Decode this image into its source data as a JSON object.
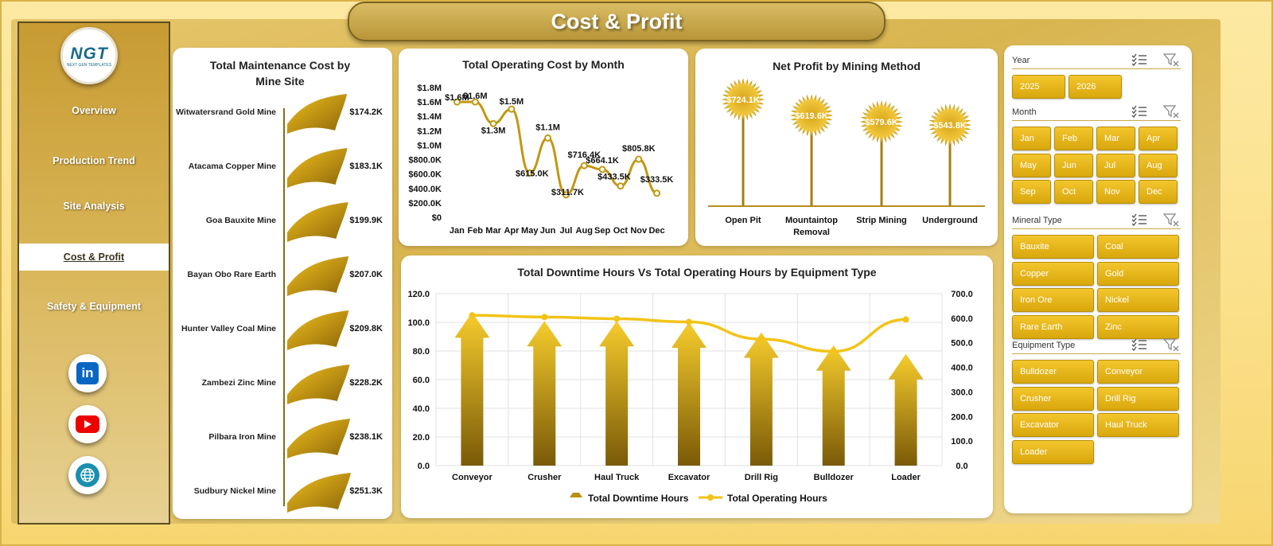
{
  "title": "Cost & Profit",
  "logo": {
    "text": "NGT",
    "subtext": "NEXT GEN TEMPLATES"
  },
  "nav": {
    "items": [
      {
        "label": "Overview",
        "active": false
      },
      {
        "label": "Production Trend",
        "active": false
      },
      {
        "label": "Site Analysis",
        "active": false
      },
      {
        "label": "Cost & Profit",
        "active": true
      },
      {
        "label": "Safety & Equipment",
        "active": false
      }
    ]
  },
  "social": {
    "linkedin": "in"
  },
  "icons": {
    "linkedin": "linkedin-icon",
    "youtube": "youtube-icon",
    "web": "globe-icon",
    "multiselect": "multi-select-icon",
    "clear_filter": "clear-filter-icon"
  },
  "colors": {
    "gold": "#b8900d",
    "gold_light": "#f2c53a",
    "line": "#f0c419",
    "accent_dark": "#7a5a08"
  },
  "charts": {
    "maintenance": {
      "title": "Total Maintenance Cost by Mine Site",
      "chart_data": {
        "type": "bar",
        "orientation": "horizontal",
        "categories": [
          "Witwatersrand Gold Mine",
          "Atacama Copper Mine",
          "Goa Bauxite Mine",
          "Bayan Obo Rare Earth",
          "Hunter Valley Coal Mine",
          "Zambezi Zinc Mine",
          "Pilbara Iron Mine",
          "Sudbury Nickel Mine"
        ],
        "values": [
          174200,
          183100,
          199900,
          207000,
          209800,
          228200,
          238100,
          251300
        ],
        "labels": [
          "$174.2K",
          "$183.1K",
          "$199.9K",
          "$207.0K",
          "$209.8K",
          "$228.2K",
          "$238.1K",
          "$251.3K"
        ]
      }
    },
    "operating": {
      "title": "Total Operating Cost by Month",
      "chart_data": {
        "type": "line",
        "categories": [
          "Jan",
          "Feb",
          "Mar",
          "Apr",
          "May",
          "Jun",
          "Jul",
          "Aug",
          "Sep",
          "Oct",
          "Nov",
          "Dec"
        ],
        "values": [
          1600000,
          1600000,
          1300000,
          1500000,
          615000,
          1100000,
          311700,
          716400,
          664100,
          433500,
          805800,
          333500
        ],
        "labels": [
          "$1.6M",
          "$1.6M",
          "$1.3M",
          "$1.5M",
          "$615.0K",
          "$1.1M",
          "$311.7K",
          "$716.4K",
          "$664.1K",
          "$433.5K",
          "$805.8K",
          "$333.5K"
        ],
        "yticks": [
          "$0",
          "$200.0K",
          "$400.0K",
          "$600.0K",
          "$800.0K",
          "$1.0M",
          "$1.2M",
          "$1.4M",
          "$1.6M",
          "$1.8M"
        ],
        "ylim": [
          0,
          1800000
        ]
      }
    },
    "netprofit": {
      "title": "Net Profit by Mining Method",
      "chart_data": {
        "type": "bar",
        "style": "lollipop-burst",
        "categories": [
          "Open Pit",
          "Mountaintop Removal",
          "Strip Mining",
          "Underground"
        ],
        "category_lines": [
          [
            "Open Pit"
          ],
          [
            "Mountaintop",
            "Removal"
          ],
          [
            "Strip Mining"
          ],
          [
            "Underground"
          ]
        ],
        "values": [
          724100,
          619600,
          579600,
          543800
        ],
        "labels": [
          "$724.1K",
          "$619.6K",
          "$579.6K",
          "$543.8K"
        ]
      }
    },
    "downtime": {
      "title": "Total Downtime Hours Vs Total Operating Hours by Equipment Type",
      "chart_data": {
        "type": "bar",
        "categories": [
          "Conveyor",
          "Crusher",
          "Haul Truck",
          "Excavator",
          "Drill Rig",
          "Bulldozer",
          "Loader"
        ],
        "series": [
          {
            "name": "Total Downtime Hours",
            "type": "bar",
            "axis": "left",
            "values": [
              107,
              101,
              101,
              100,
              93,
              84,
              78
            ]
          },
          {
            "name": "Total Operating Hours",
            "type": "line",
            "axis": "right",
            "values": [
              612,
              605,
              598,
              585,
              515,
              465,
              595
            ]
          }
        ],
        "yticks_left": [
          "0.0",
          "20.0",
          "40.0",
          "60.0",
          "80.0",
          "100.0",
          "120.0"
        ],
        "yticks_right": [
          "0.0",
          "100.0",
          "200.0",
          "300.0",
          "400.0",
          "500.0",
          "600.0",
          "700.0"
        ],
        "ylim_left": [
          0,
          120
        ],
        "ylim_right": [
          0,
          700
        ],
        "legend": "bottom"
      }
    }
  },
  "slicers": [
    {
      "title": "Year",
      "cols": 2,
      "w": 67,
      "items": [
        "2025",
        "2026"
      ]
    },
    {
      "title": "Month",
      "cols": 4,
      "w": 49,
      "items": [
        "Jan",
        "Feb",
        "Mar",
        "Apr",
        "May",
        "Jun",
        "Jul",
        "Aug",
        "Sep",
        "Oct",
        "Nov",
        "Dec"
      ]
    },
    {
      "title": "Mineral Type",
      "cols": 2,
      "w": 103,
      "items": [
        "Bauxite",
        "Coal",
        "Copper",
        "Gold",
        "Iron Ore",
        "Nickel",
        "Rare Earth",
        "Zinc"
      ]
    },
    {
      "title": "Equipment Type",
      "cols": 2,
      "w": 103,
      "items": [
        "Bulldozer",
        "Conveyor",
        "Crusher",
        "Drill Rig",
        "Excavator",
        "Haul Truck",
        "Loader"
      ]
    }
  ]
}
